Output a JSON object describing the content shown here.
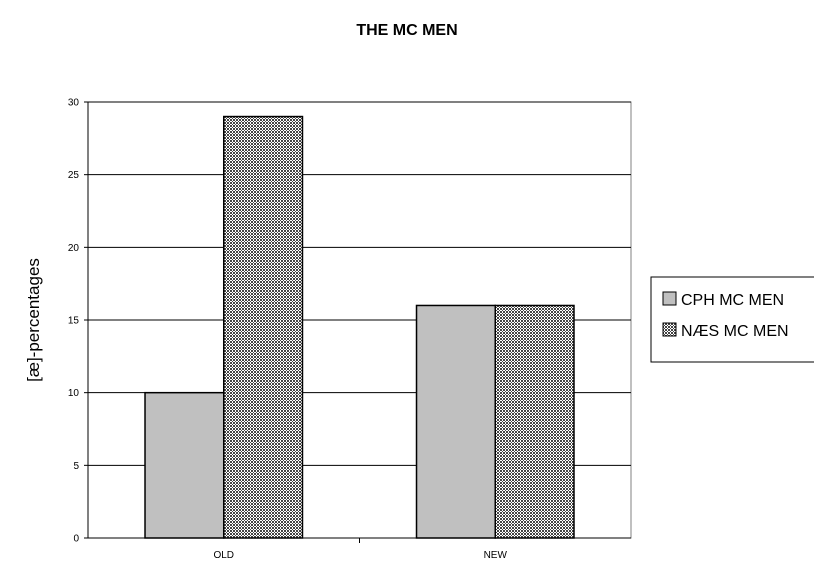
{
  "chart_data": {
    "type": "bar",
    "title": "THE MC MEN",
    "xlabel": "",
    "ylabel": "[æ]-percentages",
    "categories": [
      "OLD",
      "NEW"
    ],
    "series": [
      {
        "name": "CPH MC MEN",
        "values": [
          10,
          16
        ],
        "color": "#c0c0c0",
        "pattern": "solid"
      },
      {
        "name": "NÆS MC MEN",
        "values": [
          29,
          16
        ],
        "color": "#808080",
        "pattern": "crosshatch"
      }
    ],
    "ylim": [
      0,
      30
    ],
    "yticks": [
      "0",
      "5",
      "10",
      "15",
      "20",
      "25",
      "30"
    ],
    "grid": true,
    "legend_position": "right"
  }
}
